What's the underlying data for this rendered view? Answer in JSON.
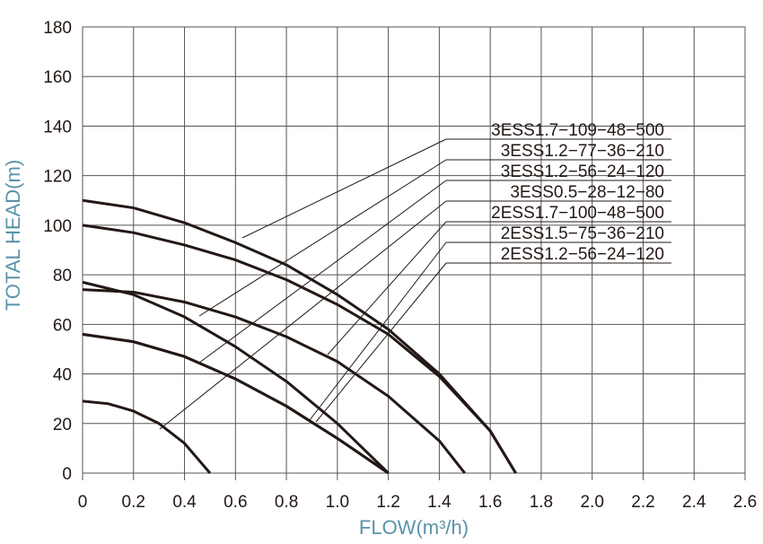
{
  "chart_data": {
    "type": "line",
    "xlabel": "FLOW(m³/h)",
    "ylabel": "TOTAL HEAD(m)",
    "xlim": [
      0,
      2.6
    ],
    "ylim": [
      0,
      180
    ],
    "xticks": [
      0,
      0.2,
      0.4,
      0.6,
      0.8,
      {
        "value": 1,
        "label": "1.0"
      },
      1.2,
      1.4,
      1.6,
      1.8,
      {
        "value": 2,
        "label": "2.0"
      },
      2.2,
      2.4,
      2.6
    ],
    "yticks": [
      0,
      20,
      40,
      60,
      80,
      100,
      120,
      140,
      160,
      180
    ],
    "grid": true,
    "series": [
      {
        "name": "3ESS1.7−109−48−500",
        "color": "#231815",
        "x": [
          0,
          0.2,
          0.4,
          0.6,
          0.8,
          1.0,
          1.2,
          1.4,
          1.6,
          1.7
        ],
        "values": [
          110,
          107,
          101,
          93,
          84,
          72,
          58,
          40,
          17,
          0
        ]
      },
      {
        "name": "3ESS1.2−77−36−210",
        "color": "#231815",
        "x": [
          0,
          0.2,
          0.4,
          0.6,
          0.8,
          1.0,
          1.2
        ],
        "values": [
          77,
          72,
          63,
          51,
          37,
          20,
          0
        ]
      },
      {
        "name": "3ESS1.2−56−24−120",
        "color": "#231815",
        "x": [
          0,
          0.2,
          0.4,
          0.6,
          0.8,
          1.0,
          1.2
        ],
        "values": [
          56,
          53,
          47,
          38,
          27,
          14,
          0
        ]
      },
      {
        "name": "3ESS0.5−28−12−80",
        "color": "#231815",
        "x": [
          0,
          0.1,
          0.2,
          0.3,
          0.4,
          0.5
        ],
        "values": [
          29,
          28,
          25,
          20,
          12,
          0
        ]
      },
      {
        "name": "2ESS1.7−100−48−500",
        "color": "#231815",
        "x": [
          0,
          0.2,
          0.4,
          0.6,
          0.8,
          1.0,
          1.2,
          1.4,
          1.6,
          1.7
        ],
        "values": [
          100,
          97,
          92,
          86,
          78,
          68,
          56,
          39,
          17,
          0
        ]
      },
      {
        "name": "2ESS1.5−75−36−210",
        "color": "#231815",
        "x": [
          0,
          0.2,
          0.4,
          0.6,
          0.8,
          1.0,
          1.2,
          1.4,
          1.5
        ],
        "values": [
          74,
          73,
          69,
          63,
          55,
          45,
          31,
          13,
          0
        ]
      },
      {
        "name": "2ESS1.2−56−24−120",
        "color": "#231815",
        "x": [
          0,
          0.2,
          0.4,
          0.6,
          0.8,
          1.0,
          1.2
        ],
        "values": [
          56,
          53,
          47,
          38,
          27,
          14,
          0
        ]
      }
    ]
  }
}
